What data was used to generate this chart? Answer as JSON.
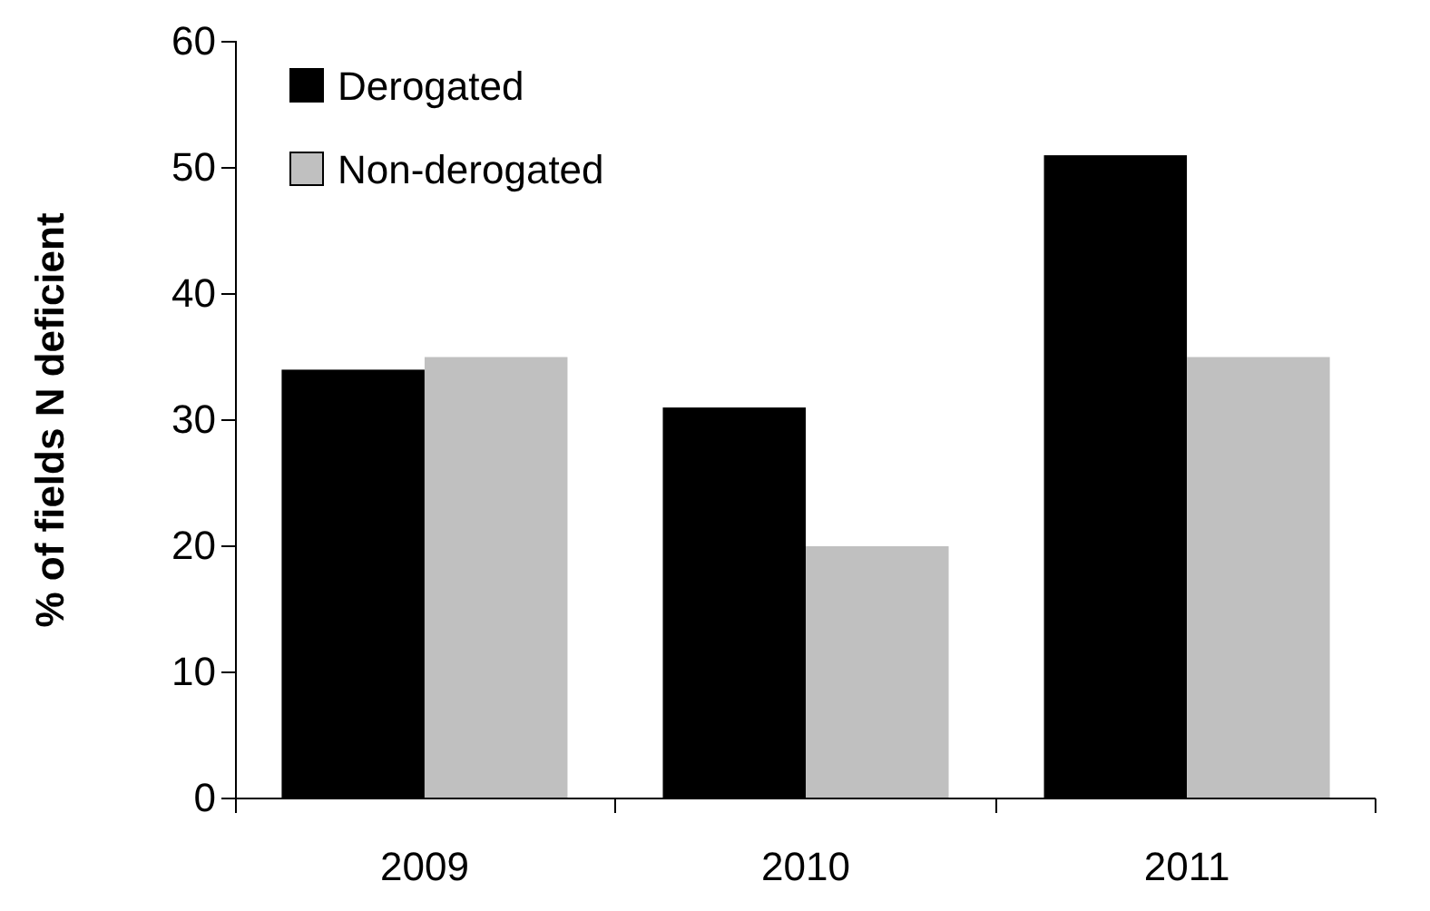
{
  "chart_data": {
    "type": "bar",
    "ylabel": "% of fields N deficient",
    "categories": [
      "2009",
      "2010",
      "2011"
    ],
    "series": [
      {
        "name": "Derogated",
        "color": "#000000",
        "values": [
          34,
          31,
          51
        ]
      },
      {
        "name": "Non-derogated",
        "color": "#c0c0c0",
        "values": [
          35,
          20,
          35
        ]
      }
    ],
    "ylim": [
      0,
      60
    ],
    "yticks": [
      0,
      10,
      20,
      30,
      40,
      50,
      60
    ],
    "grid": false,
    "legend": "top left"
  }
}
